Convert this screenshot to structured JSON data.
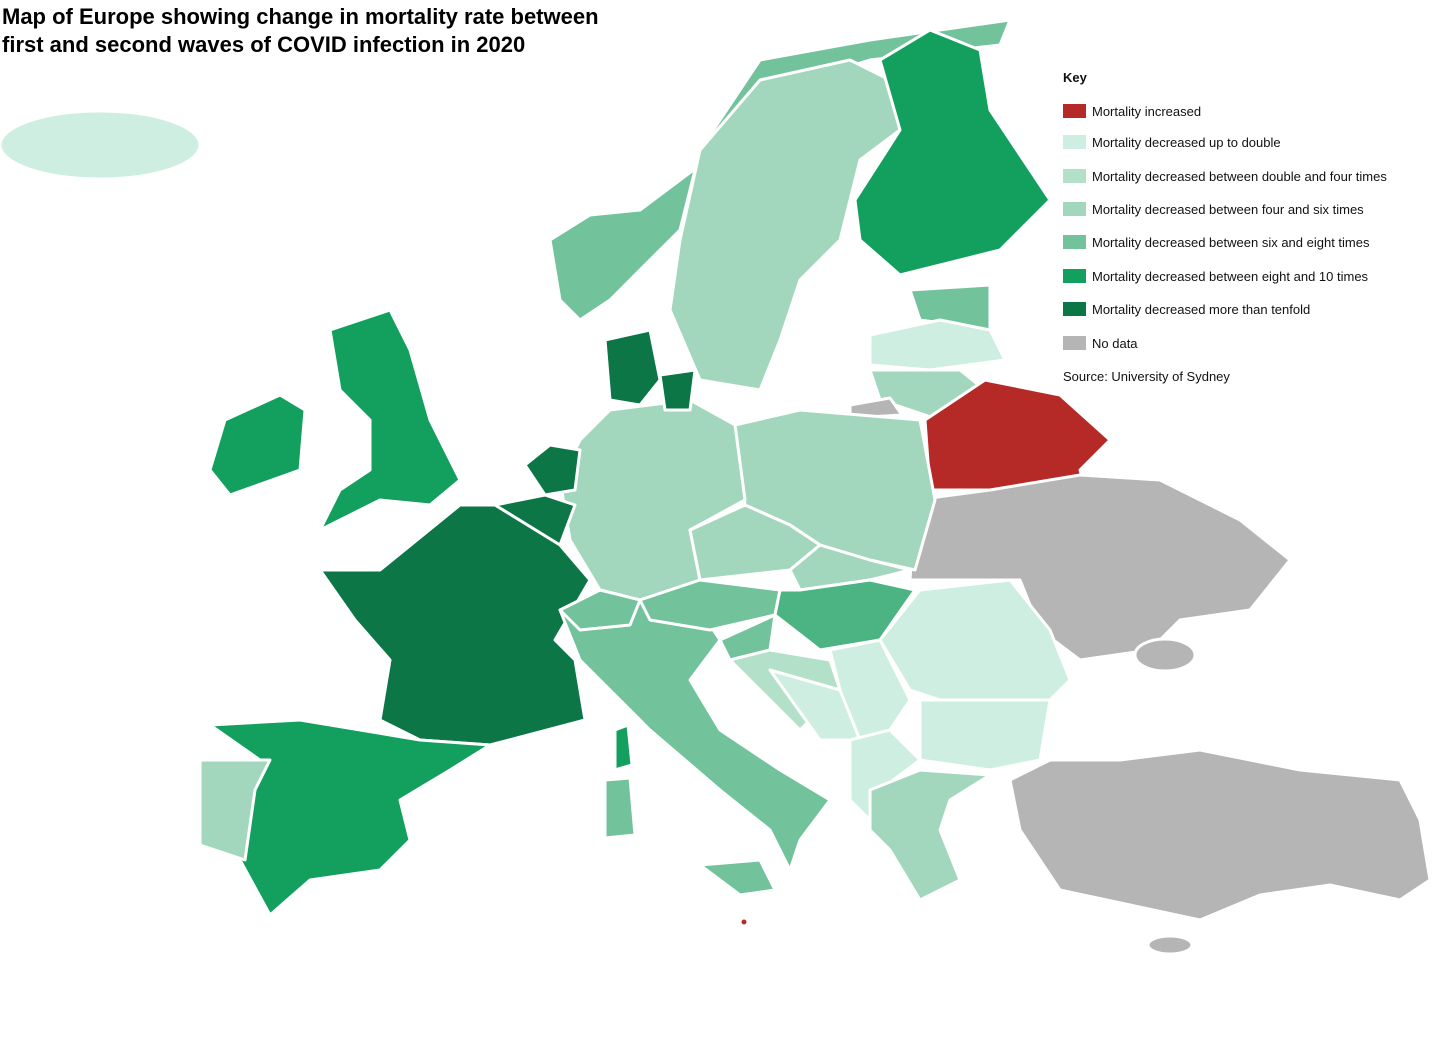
{
  "title_lines": [
    "Map of Europe showing change in mortality rate between",
    "first and second waves of COVID infection in 2020"
  ],
  "key": {
    "heading": "Key",
    "items": [
      {
        "label": "Mortality increased",
        "color": "#b52a26"
      },
      {
        "label": "Mortality decreased up to double",
        "color": "#cdeee0"
      },
      {
        "label": "Mortality decreased between double and four times",
        "color": "#b3e0c8"
      },
      {
        "label": "Mortality decreased between four and six times",
        "color": "#a3d7bd"
      },
      {
        "label": "Mortality decreased between six and eight times",
        "color": "#72c39c"
      },
      {
        "label": "Mortality decreased between eight and 10 times",
        "color": "#13a05e"
      },
      {
        "label": "Mortality decreased more than tenfold",
        "color": "#0c7646"
      },
      {
        "label": "No data",
        "color": "#b5b5b5"
      }
    ]
  },
  "source": "Source: University of Sydney"
}
